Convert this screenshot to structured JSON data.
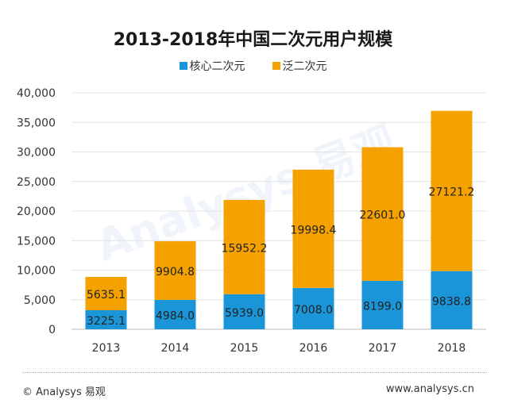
{
  "chart_data": {
    "type": "bar",
    "stacked": true,
    "title": "2013-2018年中国二次元用户规模",
    "categories": [
      "2013",
      "2014",
      "2015",
      "2016",
      "2017",
      "2018"
    ],
    "series": [
      {
        "name": "核心二次元",
        "color": "#1a96d8",
        "values": [
          3225.1,
          4984.0,
          5939.0,
          7008.0,
          8199.0,
          9838.8
        ],
        "labels": [
          "3225.1",
          "4984.0",
          "5939.0",
          "7008.0",
          "8199.0",
          "9838.8"
        ]
      },
      {
        "name": "泛二次元",
        "color": "#f5a100",
        "values": [
          5635.1,
          9904.8,
          15952.2,
          19998.4,
          22601.0,
          27121.2
        ],
        "labels": [
          "5635.1",
          "9904.8",
          "15952.2",
          "19998.4",
          "22601.0",
          "27121.2"
        ]
      }
    ],
    "ylim": [
      0,
      40000
    ],
    "yticks": [
      "0",
      "5,000",
      "10,000",
      "15,000",
      "20,000",
      "25,000",
      "30,000",
      "35,000",
      "40,000"
    ],
    "grid": true,
    "legend": "top-center"
  },
  "footer": {
    "left": "© Analysys 易观",
    "right": "www.analysys.cn"
  },
  "watermark": "Analysys 易观"
}
